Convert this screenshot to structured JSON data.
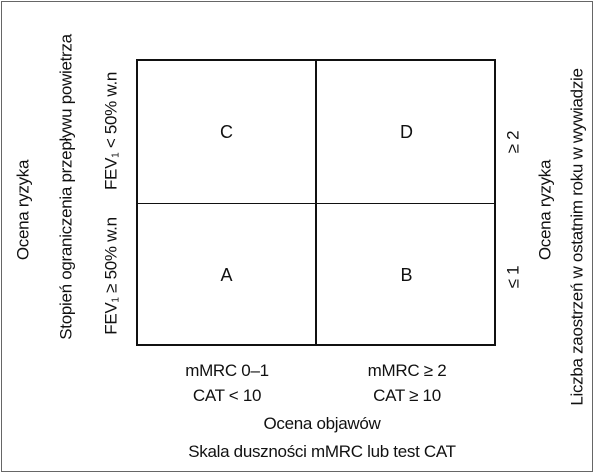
{
  "quadrants": {
    "c": "C",
    "d": "D",
    "a": "A",
    "b": "B"
  },
  "x_axis": {
    "col1_line1": "mMRC 0–1",
    "col1_line2": "CAT < 10",
    "col2_line1": "mMRC ≥ 2",
    "col2_line2": "CAT ≥ 10",
    "title": "Ocena objawów",
    "subtitle": "Skala duszności mMRC lub test CAT"
  },
  "left_axis": {
    "title": "Ocena ryzyka",
    "subtitle": "Stopień ograniczenia przepływu powietrza",
    "upper_prefix": "FEV",
    "upper_sub": "1",
    "upper_suffix": " < 50% w.n",
    "lower_prefix": "FEV",
    "lower_sub": "1",
    "lower_suffix": " ≥ 50% w.n"
  },
  "right_axis": {
    "upper": "≥ 2",
    "lower": "≤ 1",
    "title": "Ocena ryzyka",
    "subtitle": "Liczba zaostrzeń w ostatnim roku w wywiadzie"
  }
}
